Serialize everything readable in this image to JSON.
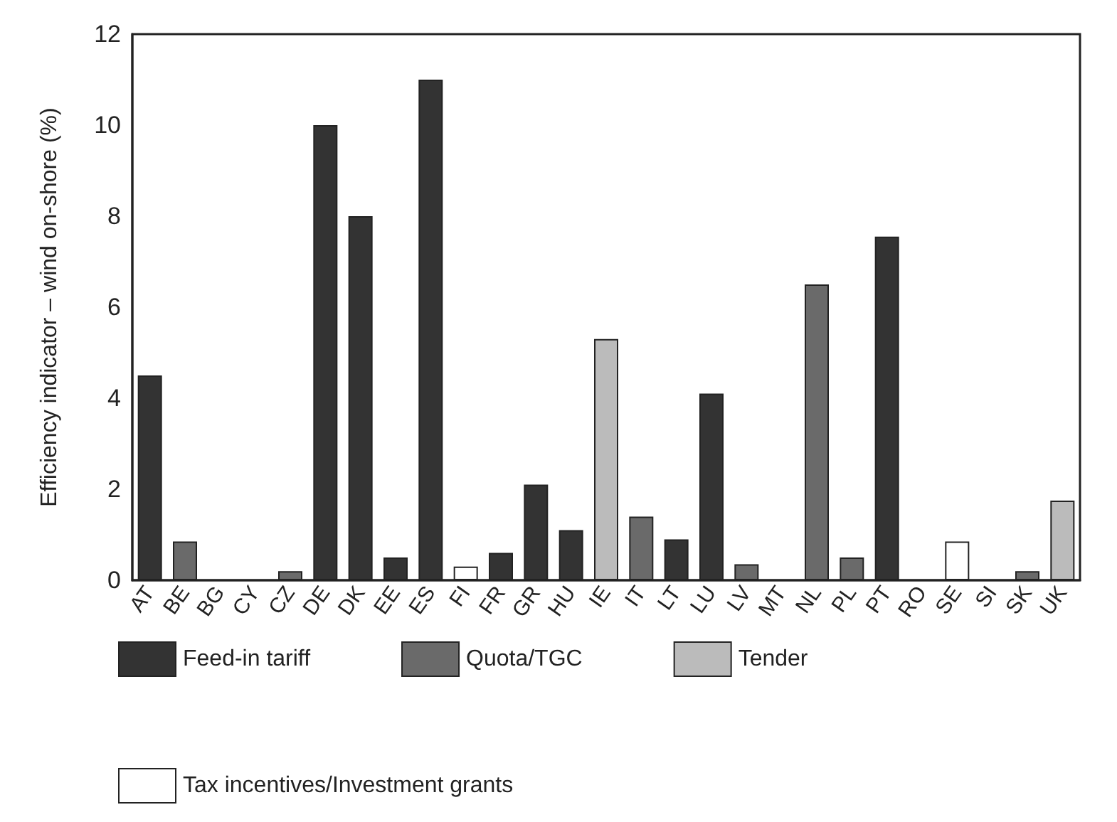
{
  "chart_data": {
    "type": "bar",
    "ylabel": "Efficiency indicator – wind on-shore (%)",
    "categories": [
      "AT",
      "BE",
      "BG",
      "CY",
      "CZ",
      "DE",
      "DK",
      "EE",
      "ES",
      "FI",
      "FR",
      "GR",
      "HU",
      "IE",
      "IT",
      "LT",
      "LU",
      "LV",
      "MT",
      "NL",
      "PL",
      "PT",
      "RO",
      "SE",
      "SI",
      "SK",
      "UK"
    ],
    "series": [
      {
        "name": "Feed-in tariff",
        "color": "#333333",
        "values": [
          4.5,
          null,
          0,
          0,
          null,
          10,
          8,
          0.5,
          11,
          null,
          0.6,
          2.1,
          1.1,
          null,
          null,
          0.9,
          4.1,
          null,
          0,
          null,
          null,
          7.55,
          0,
          null,
          0,
          null,
          null
        ]
      },
      {
        "name": "Quota/TGC",
        "color": "#6a6a6a",
        "values": [
          null,
          0.85,
          null,
          null,
          0.2,
          null,
          null,
          null,
          null,
          null,
          null,
          null,
          null,
          null,
          1.4,
          null,
          null,
          0.35,
          null,
          6.5,
          0.5,
          null,
          null,
          null,
          null,
          0.2,
          null
        ]
      },
      {
        "name": "Tender",
        "color": "#bbbbbb",
        "values": [
          null,
          null,
          null,
          null,
          null,
          null,
          null,
          null,
          null,
          null,
          null,
          null,
          null,
          5.3,
          null,
          null,
          null,
          null,
          null,
          null,
          null,
          null,
          null,
          null,
          null,
          null,
          1.75
        ]
      },
      {
        "name": "Tax incentives/Investment grants",
        "color": "#ffffff",
        "values": [
          null,
          null,
          null,
          null,
          null,
          null,
          null,
          null,
          null,
          0.3,
          null,
          null,
          null,
          null,
          null,
          null,
          null,
          null,
          null,
          null,
          null,
          null,
          null,
          0.85,
          null,
          null,
          null
        ]
      }
    ],
    "ylim": [
      0,
      12
    ],
    "yticks": [
      0,
      2,
      4,
      6,
      8,
      10,
      12
    ],
    "grid": false,
    "legend": "bottom"
  }
}
